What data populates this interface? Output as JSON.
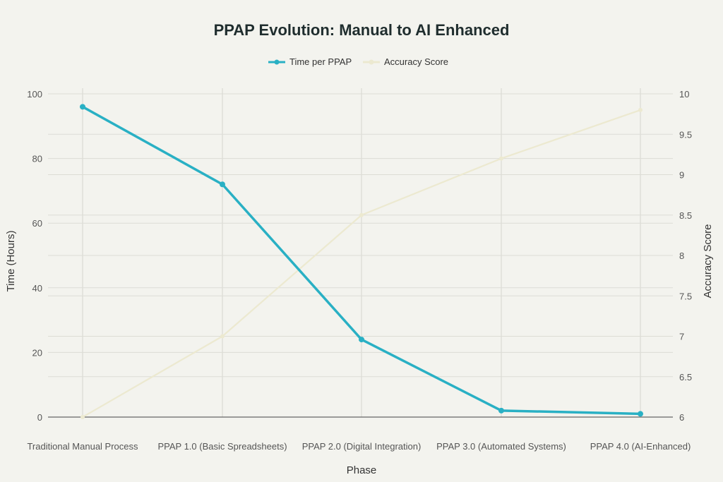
{
  "chart_data": {
    "type": "line",
    "title": "PPAP Evolution: Manual to AI Enhanced",
    "xlabel": "Phase",
    "ylabel": "Time (Hours)",
    "y2label": "Accuracy Score",
    "categories": [
      "Traditional Manual Process",
      "PPAP 1.0 (Basic Spreadsheets)",
      "PPAP 2.0 (Digital Integration)",
      "PPAP 3.0 (Automated Systems)",
      "PPAP 4.0 (AI-Enhanced)"
    ],
    "ylim": [
      0,
      100
    ],
    "y2lim": [
      6,
      10
    ],
    "yticks": [
      0,
      20,
      40,
      60,
      80,
      100
    ],
    "y2ticks": [
      "6",
      "6.5",
      "7",
      "7.5",
      "8",
      "8.5",
      "9",
      "9.5",
      "10"
    ],
    "grid": true,
    "legend": "top-center",
    "series": [
      {
        "name": "Time per PPAP",
        "axis": "left",
        "color": "#29b0c4",
        "values": [
          96,
          72,
          24,
          2,
          1
        ]
      },
      {
        "name": "Accuracy Score",
        "axis": "right",
        "color": "#ece9d0",
        "values": [
          6.0,
          7.0,
          8.5,
          9.2,
          9.8
        ]
      }
    ]
  }
}
